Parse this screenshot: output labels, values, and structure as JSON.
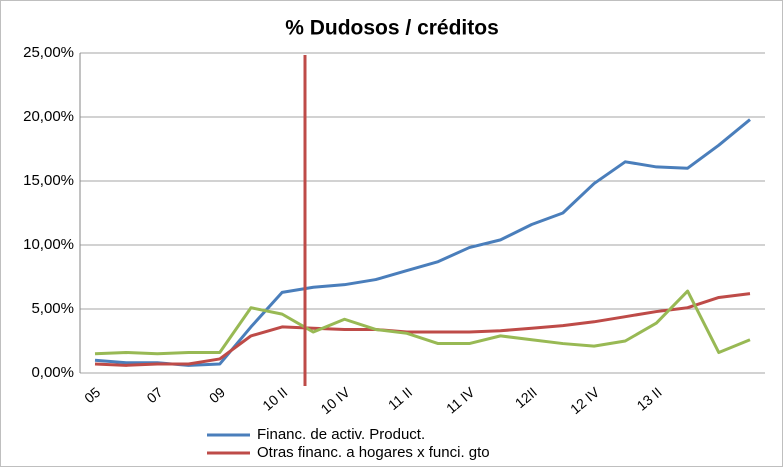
{
  "chart_data": {
    "type": "line",
    "title": "% Dudosos / créditos",
    "categories": [
      "05",
      null,
      "07",
      null,
      "09",
      null,
      "10 II",
      null,
      "10 IV",
      null,
      "11 II",
      null,
      "11 IV",
      null,
      "12II",
      null,
      "12 IV",
      null,
      "13 II",
      null,
      null,
      null
    ],
    "series": [
      {
        "name": "Financ. de activ. Product.",
        "color": "#4a7ebb",
        "values": [
          1.0,
          0.8,
          0.8,
          0.6,
          0.7,
          3.6,
          6.3,
          6.7,
          6.9,
          7.3,
          8.0,
          8.7,
          9.8,
          10.4,
          11.6,
          12.5,
          14.8,
          16.5,
          16.1,
          16.0,
          17.8,
          19.8
        ]
      },
      {
        "name": "Otras financ. a hogares x funci. gto",
        "color": "#be4b48",
        "values": [
          0.7,
          0.6,
          0.7,
          0.7,
          1.1,
          2.9,
          3.6,
          3.5,
          3.4,
          3.4,
          3.2,
          3.2,
          3.2,
          3.3,
          3.5,
          3.7,
          4.0,
          4.4,
          4.8,
          5.1,
          5.9,
          6.2
        ]
      },
      {
        "color": "#98b954",
        "values": [
          1.5,
          1.6,
          1.5,
          1.6,
          1.6,
          5.1,
          4.6,
          3.2,
          4.2,
          3.4,
          3.1,
          2.3,
          2.3,
          2.9,
          2.6,
          2.3,
          2.1,
          2.5,
          3.9,
          6.4,
          1.6,
          2.6
        ]
      }
    ],
    "ylim": [
      0,
      25
    ],
    "yticks": [
      {
        "value": 0,
        "label": "0,00%"
      },
      {
        "value": 5,
        "label": "5,00%"
      },
      {
        "value": 10,
        "label": "10,00%"
      },
      {
        "value": 15,
        "label": "15,00%"
      },
      {
        "value": 20,
        "label": "20,00%"
      },
      {
        "value": 25,
        "label": "25,00%"
      }
    ],
    "grid": true
  }
}
